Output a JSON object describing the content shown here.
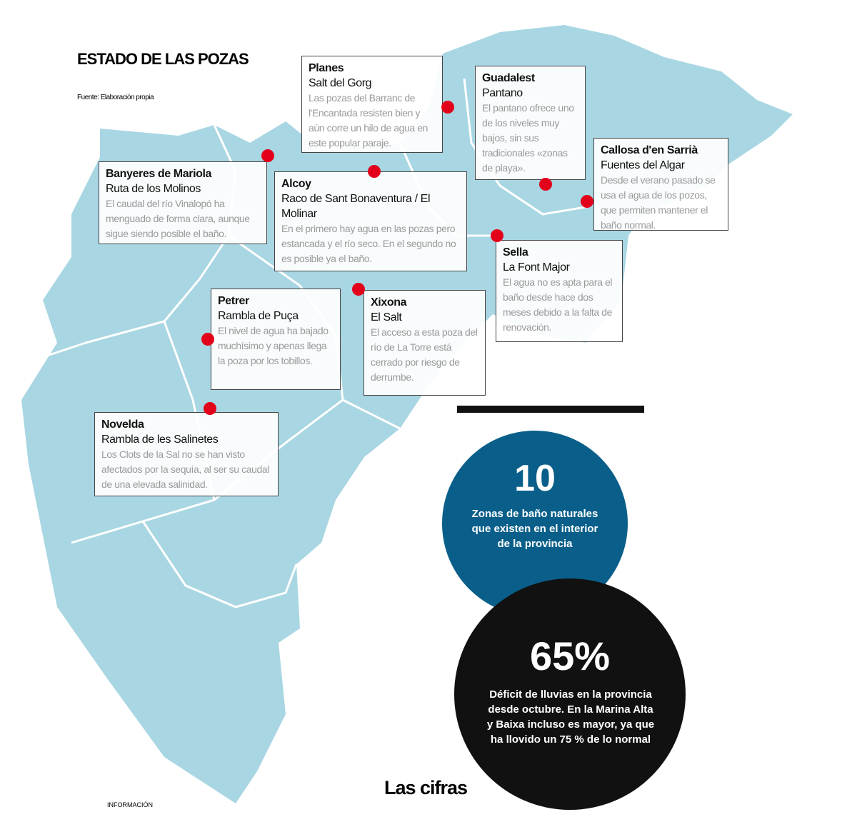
{
  "header": {
    "title": "ESTADO DE LAS POZAS",
    "source": "Fuente: Elaboración propia"
  },
  "locations": [
    {
      "name": "Planes",
      "place": "Salt del Gorg",
      "description": "Las pozas del Barranc de l'Encantada resisten bien y aún corre un hilo de agua en este popular paraje."
    },
    {
      "name": "Guadalest",
      "place": "Pantano",
      "description": "El pantano ofrece uno de los niveles muy bajos, sin sus tradicionales «zonas de playa»."
    },
    {
      "name": "Callosa d'en Sarrià",
      "place": "Fuentes del Algar",
      "description": "Desde el verano pasado se usa el agua de los pozos, que permiten mantener el baño normal."
    },
    {
      "name": "Banyeres de Mariola",
      "place": "Ruta de los Molinos",
      "description": "El caudal del río Vinalopó ha menguado de forma clara, aunque sigue siendo posible el baño."
    },
    {
      "name": "Alcoy",
      "place": "Raco de Sant Bonaventura / El Molinar",
      "description": "En el primero hay agua en las pozas pero estancada y el río seco. En el segundo no es posible ya el baño."
    },
    {
      "name": "Sella",
      "place": "La Font Major",
      "description": "El agua no es apta para el baño desde hace dos meses debido a la falta de renovación."
    },
    {
      "name": "Petrer",
      "place": "Rambla de Puça",
      "description": "El nivel de agua ha bajado muchísimo y apenas llega la poza por los tobillos."
    },
    {
      "name": "Xixona",
      "place": "El Salt",
      "description": "El acceso a esta poza del río de La Torre está cerrado por riesgo de derrumbe."
    },
    {
      "name": "Novelda",
      "place": "Rambla de les Salinetes",
      "description": "Los Clots de la Sal no se han visto afectados por la sequía, al ser su caudal de una elevada salinidad."
    }
  ],
  "figures": {
    "title": "Las cifras",
    "items": [
      {
        "figure": "10",
        "text": "Zonas de baño naturales que existen en el interior de la provincia"
      },
      {
        "figure": "65%",
        "text": "Déficit de lluvias en la provincia desde octubre. En la Marina Alta y Baixa incluso es mayor, ya que ha llovido un 75 % de lo normal"
      }
    ]
  },
  "credit": "INFORMACIÓN"
}
